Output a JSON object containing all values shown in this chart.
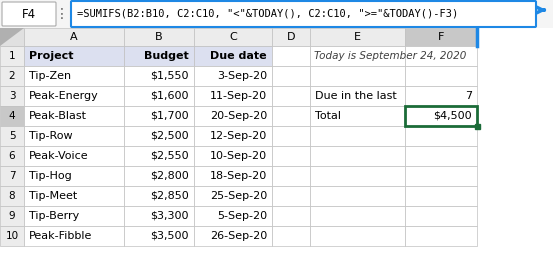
{
  "formula_bar_cell": "F4",
  "formula_bar_text": "=SUMIFS(B2:B10, C2:C10, \"<\"&TODAY(), C2:C10, \">=\"&TODAY()-F3)",
  "col_headers": [
    "A",
    "B",
    "C",
    "D",
    "E",
    "F"
  ],
  "header_row": [
    "Project",
    "Budget",
    "Due date",
    "",
    "",
    ""
  ],
  "data_rows": [
    [
      "Tip-Zen",
      "$1,550",
      "3-Sep-20",
      "",
      "",
      ""
    ],
    [
      "Peak-Energy",
      "$1,600",
      "11-Sep-20",
      "",
      "Due in the last",
      "7"
    ],
    [
      "Peak-Blast",
      "$1,700",
      "20-Sep-20",
      "",
      "Total",
      "$4,500"
    ],
    [
      "Tip-Row",
      "$2,500",
      "12-Sep-20",
      "",
      "",
      ""
    ],
    [
      "Peak-Voice",
      "$2,550",
      "10-Sep-20",
      "",
      "",
      ""
    ],
    [
      "Tip-Hog",
      "$2,800",
      "18-Sep-20",
      "",
      "",
      ""
    ],
    [
      "Tip-Meet",
      "$2,850",
      "25-Sep-20",
      "",
      "",
      ""
    ],
    [
      "Tip-Berry",
      "$3,300",
      "5-Sep-20",
      "",
      "",
      ""
    ],
    [
      "Peak-Fibble",
      "$3,500",
      "26-Sep-20",
      "",
      "",
      ""
    ]
  ],
  "today_text": "Today is September 24, 2020",
  "selected_row": 4,
  "selected_col": 5,
  "formula_bar_border": "#1e88e5",
  "selected_cell_border": "#1b6b38",
  "grid_color": "#c0c0c0",
  "header_row_bg": "#dce0f0",
  "col_f_header_bg": "#c8c8c8",
  "col_header_bg": "#ececec",
  "row_num_bg": "#ececec",
  "row_num_sel_bg": "#c8c8c8",
  "corner_bg": "#e0e0e0"
}
